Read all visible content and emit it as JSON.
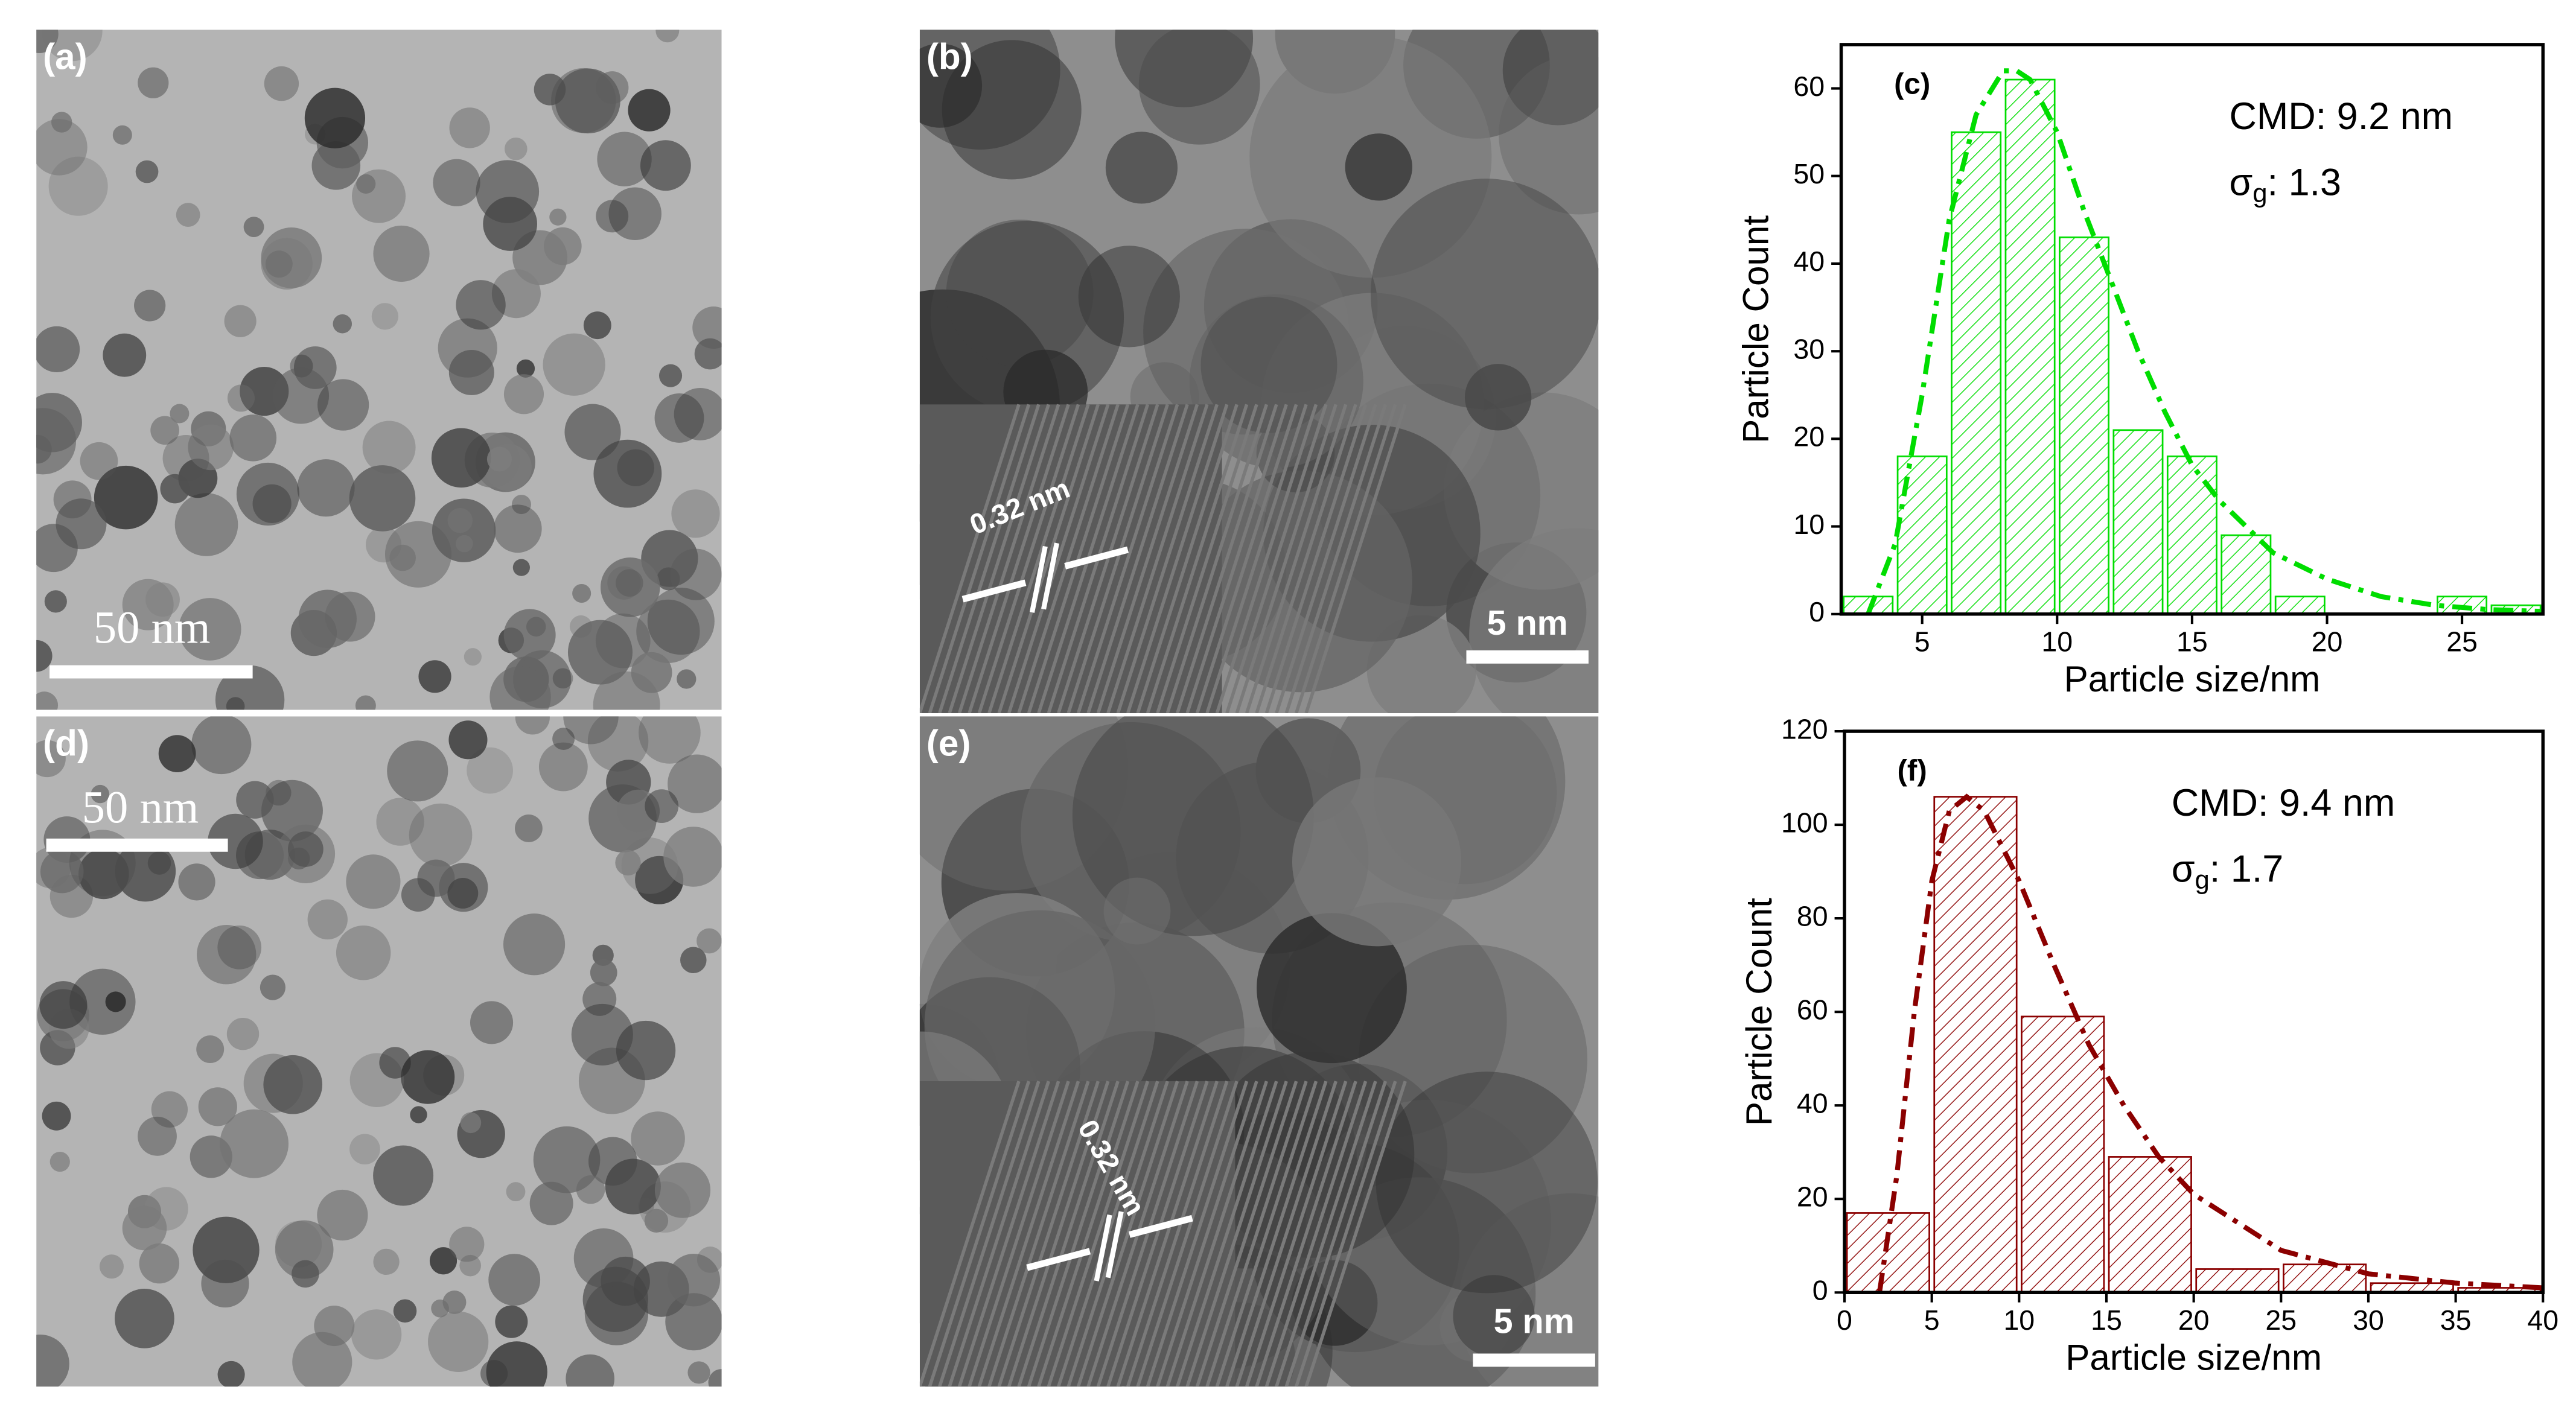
{
  "images": [
    {
      "label": "(a)",
      "scale_bar": "50 nm"
    },
    {
      "label": "(b)",
      "scale_bar": "5 nm",
      "lattice": "0.32 nm"
    },
    {
      "label": "(d)",
      "scale_bar": "50 nm"
    },
    {
      "label": "(e)",
      "scale_bar": "5 nm",
      "lattice": "0.32 nm"
    }
  ],
  "chart_data": [
    {
      "type": "histogram",
      "label": "(c)",
      "x_label": "Particle size/nm",
      "y_label": "Particle Count",
      "annotations": [
        {
          "text": "CMD: 9.2 nm"
        },
        {
          "symbol": "σ",
          "sub": "g",
          "text": ": 1.3"
        }
      ],
      "bins": [
        2,
        4,
        6,
        8,
        10,
        12,
        14,
        16,
        18,
        20,
        22,
        24,
        26,
        28
      ],
      "values": [
        2,
        18,
        55,
        61,
        43,
        21,
        18,
        9,
        2,
        0,
        0,
        2,
        1
      ],
      "color": "#00dd00",
      "fit": {
        "x": [
          3,
          4,
          5,
          6,
          7,
          8,
          8.5,
          9,
          10,
          11,
          12,
          13,
          14,
          15,
          16,
          18,
          20,
          22,
          24,
          26,
          28
        ],
        "values": [
          0,
          8,
          25,
          45,
          57,
          62,
          62,
          61,
          55,
          46,
          38,
          30,
          23,
          17,
          13,
          7,
          4,
          2,
          1,
          0.5,
          0.3
        ]
      },
      "xlim": [
        2,
        28
      ],
      "ylim": [
        0,
        65
      ],
      "xticks": [
        5,
        10,
        15,
        20,
        25
      ],
      "yticks": [
        0,
        10,
        20,
        30,
        40,
        50,
        60
      ]
    },
    {
      "type": "histogram",
      "label": "(f)",
      "x_label": "Particle size/nm",
      "y_label": "Particle Count",
      "annotations": [
        {
          "text": "CMD: 9.4 nm"
        },
        {
          "symbol": "σ",
          "sub": "g",
          "text": ": 1.7"
        }
      ],
      "bins": [
        0,
        5,
        10,
        15,
        20,
        25,
        30,
        35,
        40
      ],
      "values": [
        17,
        106,
        59,
        29,
        5,
        6,
        2,
        1
      ],
      "color": "#8b0000",
      "fit": {
        "x": [
          2,
          3,
          4,
          5,
          6,
          7,
          8,
          10,
          12,
          14,
          16,
          18,
          20,
          25,
          30,
          35,
          40
        ],
        "values": [
          0,
          25,
          60,
          88,
          103,
          106,
          103,
          88,
          70,
          53,
          40,
          29,
          21,
          9,
          4,
          2,
          1
        ]
      },
      "xlim": [
        0,
        40
      ],
      "ylim": [
        0,
        120
      ],
      "xticks": [
        0,
        5,
        10,
        15,
        20,
        25,
        30,
        35,
        40
      ],
      "yticks": [
        0,
        20,
        40,
        60,
        80,
        100,
        120
      ]
    }
  ]
}
